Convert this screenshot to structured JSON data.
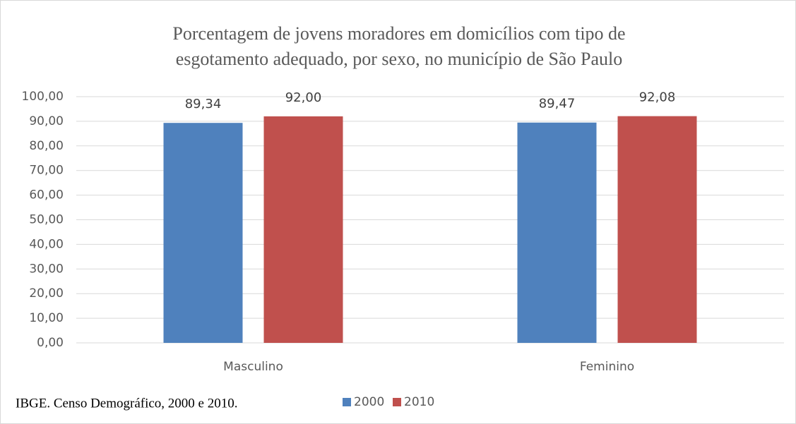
{
  "chart_data": {
    "type": "bar",
    "title": [
      "Porcentagem de jovens moradores em domicílios com tipo de",
      "esgotamento adequado, por sexo, no município de São Paulo"
    ],
    "source": "IBGE. Censo Demográfico, 2000 e 2010.",
    "categories": [
      "Masculino",
      "Feminino"
    ],
    "series": [
      {
        "name": "2000",
        "color": "#4f81bd",
        "values": [
          89.34,
          89.47
        ],
        "value_labels": [
          "89,34",
          "89,47"
        ]
      },
      {
        "name": "2010",
        "color": "#c0504d",
        "values": [
          92.0,
          92.08
        ],
        "value_labels": [
          "92,00",
          "92,08"
        ]
      }
    ],
    "ylim": [
      0,
      100
    ],
    "yticks": [
      {
        "value": 0,
        "label": "0,00"
      },
      {
        "value": 10,
        "label": "10,00"
      },
      {
        "value": 20,
        "label": "20,00"
      },
      {
        "value": 30,
        "label": "30,00"
      },
      {
        "value": 40,
        "label": "40,00"
      },
      {
        "value": 50,
        "label": "50,00"
      },
      {
        "value": 60,
        "label": "60,00"
      },
      {
        "value": 70,
        "label": "70,00"
      },
      {
        "value": 80,
        "label": "80,00"
      },
      {
        "value": 90,
        "label": "90,00"
      },
      {
        "value": 100,
        "label": "100,00"
      }
    ],
    "grid": true,
    "legend": "bottom"
  }
}
